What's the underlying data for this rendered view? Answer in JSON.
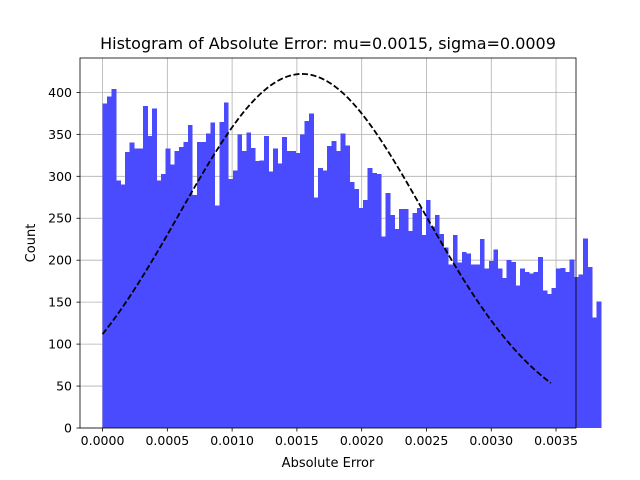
{
  "chart_data": {
    "type": "bar",
    "title": "Histogram of Absolute Error: mu=0.0015, sigma=0.0009",
    "xlabel": "Absolute Error",
    "ylabel": "Count",
    "xlim": [
      -0.000174,
      0.003654
    ],
    "ylim": [
      0,
      441
    ],
    "grid": true,
    "bar_color": "#4a4aff",
    "curve_color": "#000000",
    "x_ticks": [
      "0.0000",
      "0.0005",
      "0.0010",
      "0.0015",
      "0.0020",
      "0.0025",
      "0.0030",
      "0.0035"
    ],
    "x_tick_values": [
      0,
      0.0005,
      0.001,
      0.0015,
      0.002,
      0.0025,
      0.003,
      0.0035
    ],
    "y_ticks": [
      "0",
      "50",
      "100",
      "150",
      "200",
      "250",
      "300",
      "350",
      "400"
    ],
    "y_tick_values": [
      0,
      50,
      100,
      150,
      200,
      250,
      300,
      350,
      400
    ],
    "bins": {
      "start": 0,
      "width": 3.466e-05,
      "counts": [
        387,
        395,
        404,
        295,
        290,
        329,
        340,
        333,
        333,
        384,
        348,
        381,
        295,
        303,
        333,
        314,
        330,
        335,
        341,
        361,
        278,
        341,
        341,
        351,
        364,
        265,
        365,
        388,
        297,
        307,
        350,
        330,
        352,
        334,
        318,
        319,
        348,
        306,
        333,
        315,
        347,
        330,
        330,
        328,
        350,
        366,
        375,
        275,
        310,
        307,
        336,
        342,
        330,
        351,
        337,
        293,
        285,
        262,
        272,
        310,
        304,
        303,
        228,
        280,
        254,
        237,
        261,
        261,
        235,
        256,
        262,
        230,
        272,
        240,
        254,
        231,
        215,
        195,
        230,
        197,
        210,
        208,
        195,
        195,
        225,
        190,
        199,
        213,
        190,
        179,
        200,
        198,
        170,
        190,
        186,
        184,
        186,
        204,
        164,
        160,
        167,
        190,
        191,
        186,
        201,
        180,
        183,
        226,
        192,
        132,
        151
      ]
    },
    "fit_curve": {
      "name": "normal fit",
      "style": "dashed",
      "mu": 0.00154,
      "sigma": 0.000945,
      "peak": 422,
      "x_range": [
        0,
        0.00346
      ]
    }
  }
}
